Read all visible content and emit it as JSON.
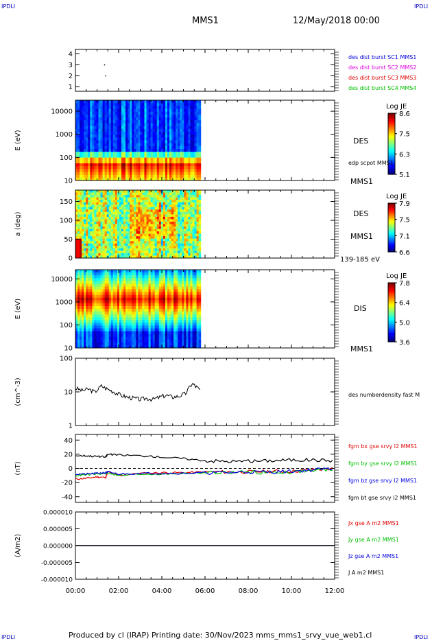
{
  "header": {
    "corner_left": "IPDLI",
    "corner_right": "IPDLI",
    "spacecraft": "MMS1",
    "datetime": "12/May/2018 00:00"
  },
  "footer": {
    "text": "Produced by cl (IRAP)   Printing date: 30/Nov/2023   mms_mms1_srvy_vue_web1.cl",
    "corner_left": "IPDLI",
    "corner_right": "IPDLI"
  },
  "colors": {
    "red": "#e00000",
    "green": "#00c000",
    "blue": "#0000e0",
    "magenta": "#e000e0",
    "black": "#000000"
  },
  "chart_data": [
    {
      "id": "p1",
      "type": "scatter",
      "y_ticks": [
        "4",
        "3",
        "2",
        "1"
      ],
      "ylim": [
        0.6,
        4.4
      ],
      "points": [
        {
          "x": 1.35,
          "y": 3.0
        },
        {
          "x": 1.4,
          "y": 2.0
        }
      ],
      "legend": [
        {
          "text": "des dist burst SC1 MMS1",
          "color": "#0000e0"
        },
        {
          "text": "des dist burst SC2 MMS2",
          "color": "#e000e0"
        },
        {
          "text": "des dist burst SC3 MMS3",
          "color": "#e00000"
        },
        {
          "text": "des dist burst SC4 MMS4",
          "color": "#00c000"
        }
      ]
    },
    {
      "id": "p2",
      "type": "heatmap",
      "ylabel": "E (eV)",
      "y_ticks": [
        "10000",
        "1000",
        "100",
        "10"
      ],
      "y_scale": "log",
      "ylim": [
        10,
        30000
      ],
      "data_end_hour": 5.8,
      "label": "DES",
      "sublabel": "edp scpot MMS1",
      "sc_label": "MMS1",
      "colorbar": {
        "title": "Log JE",
        "ticks": [
          "8.6",
          "7.5",
          "6.3",
          "5.1"
        ]
      }
    },
    {
      "id": "p3",
      "type": "heatmap",
      "ylabel": "a (deg)",
      "y_ticks": [
        "150",
        "100",
        "50",
        "0"
      ],
      "ylim": [
        0,
        180
      ],
      "data_end_hour": 5.8,
      "label": "DES",
      "sc_label": "MMS1",
      "energy_range": "139-185 eV",
      "colorbar": {
        "title": "Log JE",
        "ticks": [
          "7.9",
          "7.5",
          "7.1",
          "6.6"
        ]
      }
    },
    {
      "id": "p4",
      "type": "heatmap",
      "ylabel": "E (eV)",
      "y_ticks": [
        "10000",
        "1000",
        "100",
        "10"
      ],
      "y_scale": "log",
      "ylim": [
        10,
        25000
      ],
      "data_end_hour": 5.8,
      "label": "DIS",
      "sc_label": "MMS1",
      "colorbar": {
        "title": "Log JE",
        "ticks": [
          "7.8",
          "6.4",
          "5.0",
          "3.6"
        ]
      }
    },
    {
      "id": "p5",
      "type": "line",
      "ylabel": "(cm^-3)",
      "y_ticks": [
        "100",
        "10",
        "1"
      ],
      "y_scale": "log",
      "ylim": [
        1,
        100
      ],
      "series": [
        {
          "name": "des numberdensity fast M",
          "color": "#000000",
          "x": [
            0.0,
            0.3,
            0.6,
            0.9,
            1.2,
            1.5,
            1.8,
            2.1,
            2.4,
            2.7,
            3.0,
            3.3,
            3.6,
            3.9,
            4.2,
            4.5,
            4.8,
            5.1,
            5.4,
            5.6,
            5.8
          ],
          "y": [
            13,
            11,
            12,
            10,
            15,
            12,
            10,
            8,
            7,
            6.5,
            6,
            6.5,
            6,
            7,
            8,
            7,
            7.5,
            9,
            18,
            14,
            11
          ]
        }
      ]
    },
    {
      "id": "p6",
      "type": "line",
      "ylabel": "(nT)",
      "y_ticks": [
        "40",
        "20",
        "0",
        "-20",
        "-40"
      ],
      "ylim": [
        -48,
        48
      ],
      "zero_line": "dashed",
      "series": [
        {
          "name": "fgm bx gse srvy l2 MMS1",
          "color": "#e00000",
          "x": [
            0,
            0.5,
            1.0,
            1.4,
            1.5,
            2.0,
            3.0,
            4.0,
            5.0,
            6.0,
            7.0,
            8.0,
            9.0,
            10.0,
            11.0,
            12.0
          ],
          "y": [
            -15,
            -14,
            -12,
            -13,
            -5,
            -10,
            -7,
            -6,
            -6,
            -5,
            -5,
            -5,
            -4,
            -4,
            -2,
            0
          ]
        },
        {
          "name": "fgm by gse srvy l2 MMS1",
          "color": "#00c000",
          "x": [
            0,
            0.5,
            1.0,
            1.4,
            1.5,
            2.0,
            3.0,
            4.0,
            5.0,
            6.0,
            7.0,
            8.0,
            9.0,
            10.0,
            11.0,
            12.0
          ],
          "y": [
            -10,
            -9,
            -8,
            -7,
            -6,
            -10,
            -8,
            -8,
            -7,
            -6,
            -6,
            -5,
            -6,
            -5,
            -3,
            -1
          ]
        },
        {
          "name": "fgm bz gse srvy l2 MMS1",
          "color": "#0000e0",
          "x": [
            0,
            0.5,
            1.0,
            1.4,
            1.5,
            2.0,
            3.0,
            4.0,
            5.0,
            6.0,
            7.0,
            8.0,
            9.0,
            10.0,
            11.0,
            12.0
          ],
          "y": [
            -8,
            -8,
            -7,
            -6,
            -5,
            -8,
            -7,
            -7,
            -7,
            -6,
            -6,
            -5,
            -5,
            -4,
            -2,
            0
          ]
        },
        {
          "name": "fgm bt gse srvy l2 MMS1",
          "color": "#000000",
          "x": [
            0,
            0.5,
            1.0,
            1.4,
            1.5,
            2.0,
            3.0,
            4.0,
            5.0,
            6.0,
            7.0,
            8.0,
            9.0,
            10.0,
            11.0,
            12.0
          ],
          "y": [
            18,
            18,
            17,
            16,
            20,
            19,
            18,
            16,
            14,
            11,
            10,
            10,
            11,
            12,
            12,
            11
          ]
        }
      ]
    },
    {
      "id": "p7",
      "type": "line",
      "ylabel": "(A/m2)",
      "y_ticks": [
        "0.000010",
        "0.000005",
        "0.000000",
        "-0.000005",
        "-0.000010"
      ],
      "ylim": [
        -1e-05,
        1e-05
      ],
      "series": [
        {
          "name": "Jx gse A m2 MMS1",
          "color": "#e00000",
          "x": [
            0,
            12
          ],
          "y": [
            0,
            0
          ]
        },
        {
          "name": "Jy gse A m2 MMS1",
          "color": "#00c000",
          "x": [
            0,
            12
          ],
          "y": [
            0,
            0
          ]
        },
        {
          "name": "Jz gse A m2 MMS1",
          "color": "#0000e0",
          "x": [
            0,
            12
          ],
          "y": [
            0,
            0
          ]
        },
        {
          "name": "J A m2 MMS1",
          "color": "#000000",
          "x": [
            0,
            12
          ],
          "y": [
            0,
            0
          ]
        }
      ]
    }
  ],
  "x_axis": {
    "ticks": [
      "00:00",
      "02:00",
      "04:00",
      "06:00",
      "08:00",
      "10:00",
      "12:00"
    ],
    "xlim": [
      0,
      12
    ]
  }
}
